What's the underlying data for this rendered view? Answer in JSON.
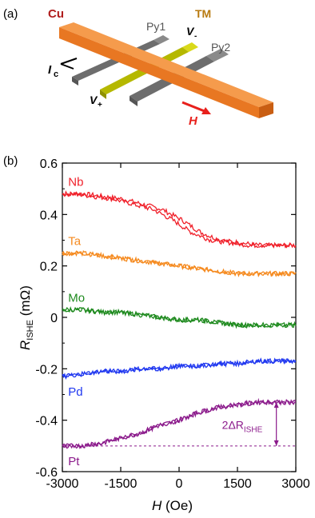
{
  "panel_a": {
    "label": "(a)",
    "cu_label": "Cu",
    "tm_label": "TM",
    "py1_label": "Py1",
    "py2_label": "Py2",
    "vminus_label": "V",
    "vminus_sub": "-",
    "vplus_label": "V",
    "vplus_sub": "+",
    "ic_label": "I",
    "ic_sub": "c",
    "h_label": "H",
    "colors": {
      "cu": "#e87722",
      "tm": "#b5b800",
      "py": "#6d6d6d",
      "arrow": "#e8201c",
      "cu_text": "#b01e1e",
      "tm_text": "#b87a10"
    }
  },
  "panel_b": {
    "label": "(b)",
    "dr_label_prefix": "2ΔR",
    "dr_label_sub": "ISHE"
  },
  "chart_data": {
    "type": "line",
    "xlabel": "H (Oe)",
    "ylabel": "RISHE (mΩ)",
    "xlim": [
      -3000,
      3000
    ],
    "ylim": [
      -0.6,
      0.6
    ],
    "xticks": [
      "-3000",
      "-1500",
      "0",
      "1500",
      "3000"
    ],
    "yticks": [
      "0.6",
      "0.4",
      "0.2",
      "0",
      "-0.2",
      "-0.4",
      "-0.6"
    ],
    "grid": false,
    "series": [
      {
        "name": "Nb",
        "color": "#f0202a",
        "x": [
          -3000,
          -2500,
          -2000,
          -1500,
          -1000,
          -500,
          0,
          500,
          1000,
          1500,
          2000,
          2500,
          3000
        ],
        "values": [
          0.48,
          0.48,
          0.47,
          0.46,
          0.44,
          0.42,
          0.38,
          0.33,
          0.3,
          0.29,
          0.28,
          0.28,
          0.28
        ]
      },
      {
        "name": "Ta",
        "color": "#f58a1f",
        "x": [
          -3000,
          -2500,
          -2000,
          -1500,
          -1000,
          -500,
          0,
          500,
          1000,
          1500,
          2000,
          2500,
          3000
        ],
        "values": [
          0.25,
          0.25,
          0.24,
          0.23,
          0.22,
          0.21,
          0.2,
          0.19,
          0.18,
          0.17,
          0.17,
          0.17,
          0.17
        ]
      },
      {
        "name": "Mo",
        "color": "#1e8a1e",
        "x": [
          -3000,
          -2500,
          -2000,
          -1500,
          -1000,
          -500,
          0,
          500,
          1000,
          1500,
          2000,
          2500,
          3000
        ],
        "values": [
          0.03,
          0.03,
          0.02,
          0.02,
          0.01,
          0.0,
          -0.01,
          -0.01,
          -0.02,
          -0.03,
          -0.03,
          -0.03,
          -0.03
        ]
      },
      {
        "name": "Pd",
        "color": "#2038f0",
        "x": [
          -3000,
          -2500,
          -2000,
          -1500,
          -1000,
          -500,
          0,
          500,
          1000,
          1500,
          2000,
          2500,
          3000
        ],
        "values": [
          -0.23,
          -0.22,
          -0.21,
          -0.21,
          -0.2,
          -0.2,
          -0.19,
          -0.19,
          -0.18,
          -0.18,
          -0.17,
          -0.17,
          -0.17
        ]
      },
      {
        "name": "Pt",
        "color": "#8b1a8b",
        "x": [
          -3000,
          -2500,
          -2000,
          -1500,
          -1000,
          -500,
          0,
          500,
          1000,
          1500,
          2000,
          2500,
          3000
        ],
        "values": [
          -0.5,
          -0.5,
          -0.49,
          -0.47,
          -0.45,
          -0.42,
          -0.4,
          -0.37,
          -0.35,
          -0.34,
          -0.33,
          -0.33,
          -0.33
        ]
      }
    ],
    "annotation": {
      "text": "2ΔRISHE",
      "color": "#8b1a8b",
      "x": 2500,
      "y_top": -0.33,
      "y_bottom": -0.5
    }
  }
}
